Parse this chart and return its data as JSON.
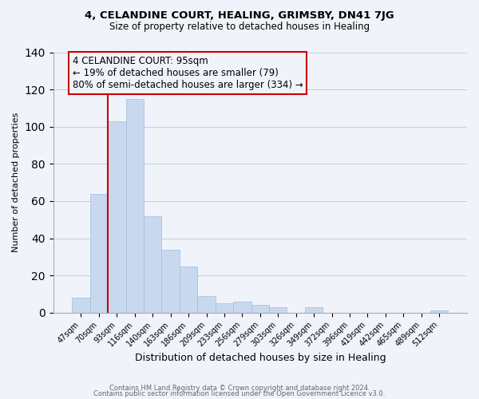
{
  "title": "4, CELANDINE COURT, HEALING, GRIMSBY, DN41 7JG",
  "subtitle": "Size of property relative to detached houses in Healing",
  "xlabel": "Distribution of detached houses by size in Healing",
  "ylabel": "Number of detached properties",
  "bar_color": "#c8d9ef",
  "bar_edge_color": "#a0bbdd",
  "marker_line_color": "#cc0000",
  "annotation_box_edge_color": "#cc0000",
  "bin_labels": [
    "47sqm",
    "70sqm",
    "93sqm",
    "116sqm",
    "140sqm",
    "163sqm",
    "186sqm",
    "209sqm",
    "233sqm",
    "256sqm",
    "279sqm",
    "303sqm",
    "326sqm",
    "349sqm",
    "372sqm",
    "396sqm",
    "419sqm",
    "442sqm",
    "465sqm",
    "489sqm",
    "512sqm"
  ],
  "bar_heights": [
    8,
    64,
    103,
    115,
    52,
    34,
    25,
    9,
    5,
    6,
    4,
    3,
    0,
    3,
    0,
    0,
    0,
    0,
    0,
    0,
    1
  ],
  "marker_bin_index": 2,
  "ylim": [
    0,
    140
  ],
  "yticks": [
    0,
    20,
    40,
    60,
    80,
    100,
    120,
    140
  ],
  "annotation_title": "4 CELANDINE COURT: 95sqm",
  "annotation_line1": "← 19% of detached houses are smaller (79)",
  "annotation_line2": "80% of semi-detached houses are larger (334) →",
  "footer_line1": "Contains HM Land Registry data © Crown copyright and database right 2024.",
  "footer_line2": "Contains public sector information licensed under the Open Government Licence v3.0.",
  "background_color": "#f0f4fa",
  "grid_color": "#c0cedf"
}
